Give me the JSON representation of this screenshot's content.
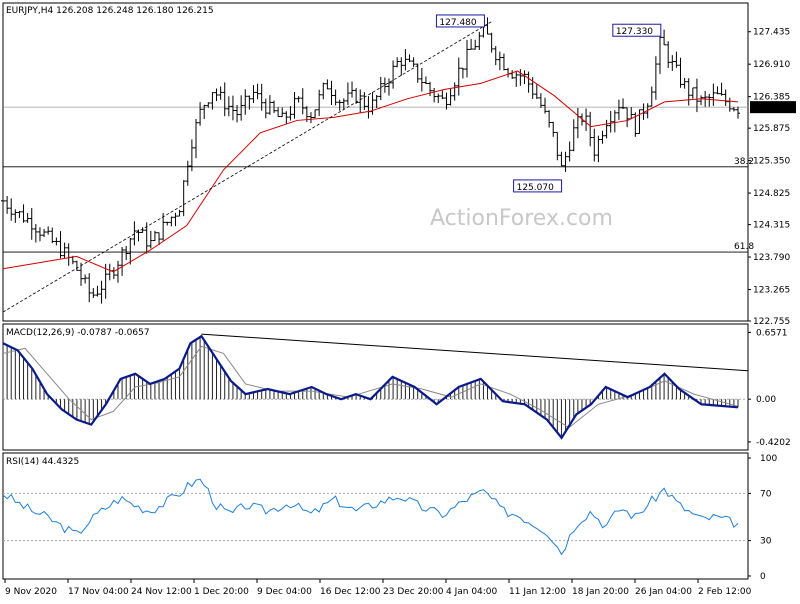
{
  "chart_data": [
    {
      "type": "candlestick",
      "header": "EURJPY,H4  126.208 126.248 126.180 126.215",
      "watermark": "ActionForex.com",
      "last_price": "126.215",
      "ylim": [
        122.755,
        127.9
      ],
      "y_ticks": [
        "127.435",
        "126.910",
        "126.385",
        "125.875",
        "125.350",
        "124.825",
        "124.315",
        "123.790",
        "123.265",
        "122.755"
      ],
      "x_ticks": [
        "9 Nov 2020",
        "17 Nov 04:00",
        "24 Nov 12:00",
        "1 Dec 20:00",
        "9 Dec 04:00",
        "16 Dec 12:00",
        "23 Dec 20:00",
        "4 Jan 04:00",
        "11 Jan 12:00",
        "18 Jan 20:00",
        "26 Jan 04:00",
        "2 Feb 12:00"
      ],
      "annotations": [
        {
          "text": "127.480",
          "x": 0.655,
          "y": 127.48
        },
        {
          "text": "127.330",
          "x": 0.895,
          "y": 127.33
        },
        {
          "text": "125.070",
          "x": 0.76,
          "y": 125.07
        }
      ],
      "fib_levels": [
        {
          "label": "38.2",
          "y": 125.25
        },
        {
          "label": "61.8",
          "y": 123.87
        }
      ],
      "close_series": [
        {
          "t": 0.0,
          "v": 124.7
        },
        {
          "t": 0.02,
          "v": 124.5
        },
        {
          "t": 0.04,
          "v": 124.35
        },
        {
          "t": 0.06,
          "v": 124.1
        },
        {
          "t": 0.08,
          "v": 123.9
        },
        {
          "t": 0.1,
          "v": 123.6
        },
        {
          "t": 0.12,
          "v": 123.15
        },
        {
          "t": 0.14,
          "v": 123.4
        },
        {
          "t": 0.16,
          "v": 123.8
        },
        {
          "t": 0.18,
          "v": 124.25
        },
        {
          "t": 0.2,
          "v": 124.0
        },
        {
          "t": 0.22,
          "v": 124.3
        },
        {
          "t": 0.24,
          "v": 124.6
        },
        {
          "t": 0.255,
          "v": 125.6
        },
        {
          "t": 0.27,
          "v": 126.2
        },
        {
          "t": 0.285,
          "v": 126.5
        },
        {
          "t": 0.3,
          "v": 126.3
        },
        {
          "t": 0.32,
          "v": 126.1
        },
        {
          "t": 0.34,
          "v": 126.45
        },
        {
          "t": 0.36,
          "v": 126.2
        },
        {
          "t": 0.38,
          "v": 126.0
        },
        {
          "t": 0.4,
          "v": 126.3
        },
        {
          "t": 0.42,
          "v": 126.1
        },
        {
          "t": 0.44,
          "v": 126.6
        },
        {
          "t": 0.46,
          "v": 126.3
        },
        {
          "t": 0.48,
          "v": 126.4
        },
        {
          "t": 0.5,
          "v": 126.2
        },
        {
          "t": 0.52,
          "v": 126.6
        },
        {
          "t": 0.54,
          "v": 127.0
        },
        {
          "t": 0.56,
          "v": 126.8
        },
        {
          "t": 0.58,
          "v": 126.5
        },
        {
          "t": 0.6,
          "v": 126.3
        },
        {
          "t": 0.62,
          "v": 126.8
        },
        {
          "t": 0.64,
          "v": 127.2
        },
        {
          "t": 0.655,
          "v": 127.45
        },
        {
          "t": 0.67,
          "v": 127.1
        },
        {
          "t": 0.69,
          "v": 126.8
        },
        {
          "t": 0.71,
          "v": 126.7
        },
        {
          "t": 0.73,
          "v": 126.3
        },
        {
          "t": 0.75,
          "v": 125.7
        },
        {
          "t": 0.76,
          "v": 125.2
        },
        {
          "t": 0.775,
          "v": 125.8
        },
        {
          "t": 0.79,
          "v": 126.1
        },
        {
          "t": 0.805,
          "v": 125.5
        },
        {
          "t": 0.82,
          "v": 126.0
        },
        {
          "t": 0.84,
          "v": 126.3
        },
        {
          "t": 0.86,
          "v": 125.9
        },
        {
          "t": 0.88,
          "v": 126.4
        },
        {
          "t": 0.895,
          "v": 127.3
        },
        {
          "t": 0.91,
          "v": 126.9
        },
        {
          "t": 0.93,
          "v": 126.5
        },
        {
          "t": 0.95,
          "v": 126.3
        },
        {
          "t": 0.97,
          "v": 126.4
        },
        {
          "t": 1.0,
          "v": 126.2
        }
      ],
      "ma_series": [
        {
          "t": 0.0,
          "v": 123.6
        },
        {
          "t": 0.05,
          "v": 123.7
        },
        {
          "t": 0.1,
          "v": 123.8
        },
        {
          "t": 0.15,
          "v": 123.55
        },
        {
          "t": 0.2,
          "v": 123.9
        },
        {
          "t": 0.25,
          "v": 124.3
        },
        {
          "t": 0.3,
          "v": 125.2
        },
        {
          "t": 0.35,
          "v": 125.8
        },
        {
          "t": 0.4,
          "v": 126.0
        },
        {
          "t": 0.45,
          "v": 126.05
        },
        {
          "t": 0.5,
          "v": 126.15
        },
        {
          "t": 0.55,
          "v": 126.35
        },
        {
          "t": 0.6,
          "v": 126.5
        },
        {
          "t": 0.65,
          "v": 126.6
        },
        {
          "t": 0.7,
          "v": 126.8
        },
        {
          "t": 0.75,
          "v": 126.4
        },
        {
          "t": 0.8,
          "v": 125.9
        },
        {
          "t": 0.85,
          "v": 126.0
        },
        {
          "t": 0.9,
          "v": 126.3
        },
        {
          "t": 0.95,
          "v": 126.35
        },
        {
          "t": 1.0,
          "v": 126.3
        }
      ]
    },
    {
      "type": "line",
      "header": "MACD(12,26,9) -0.0787 -0.0657",
      "ylim": [
        -0.48,
        0.72
      ],
      "y_ticks": [
        "0.6571",
        "0.00",
        "-0.4202"
      ],
      "macd": [
        {
          "t": 0.0,
          "v": 0.55
        },
        {
          "t": 0.02,
          "v": 0.48
        },
        {
          "t": 0.04,
          "v": 0.3
        },
        {
          "t": 0.06,
          "v": 0.05
        },
        {
          "t": 0.08,
          "v": -0.1
        },
        {
          "t": 0.1,
          "v": -0.2
        },
        {
          "t": 0.12,
          "v": -0.25
        },
        {
          "t": 0.14,
          "v": -0.05
        },
        {
          "t": 0.16,
          "v": 0.2
        },
        {
          "t": 0.18,
          "v": 0.25
        },
        {
          "t": 0.2,
          "v": 0.15
        },
        {
          "t": 0.22,
          "v": 0.2
        },
        {
          "t": 0.24,
          "v": 0.3
        },
        {
          "t": 0.255,
          "v": 0.55
        },
        {
          "t": 0.27,
          "v": 0.62
        },
        {
          "t": 0.29,
          "v": 0.4
        },
        {
          "t": 0.31,
          "v": 0.18
        },
        {
          "t": 0.33,
          "v": 0.05
        },
        {
          "t": 0.36,
          "v": 0.1
        },
        {
          "t": 0.39,
          "v": 0.05
        },
        {
          "t": 0.42,
          "v": 0.12
        },
        {
          "t": 0.44,
          "v": 0.05
        },
        {
          "t": 0.46,
          "v": 0.0
        },
        {
          "t": 0.48,
          "v": 0.05
        },
        {
          "t": 0.5,
          "v": 0.0
        },
        {
          "t": 0.53,
          "v": 0.22
        },
        {
          "t": 0.56,
          "v": 0.12
        },
        {
          "t": 0.59,
          "v": -0.05
        },
        {
          "t": 0.62,
          "v": 0.12
        },
        {
          "t": 0.65,
          "v": 0.2
        },
        {
          "t": 0.68,
          "v": -0.02
        },
        {
          "t": 0.71,
          "v": -0.05
        },
        {
          "t": 0.74,
          "v": -0.2
        },
        {
          "t": 0.76,
          "v": -0.38
        },
        {
          "t": 0.78,
          "v": -0.15
        },
        {
          "t": 0.8,
          "v": -0.05
        },
        {
          "t": 0.82,
          "v": 0.12
        },
        {
          "t": 0.85,
          "v": 0.02
        },
        {
          "t": 0.88,
          "v": 0.12
        },
        {
          "t": 0.9,
          "v": 0.25
        },
        {
          "t": 0.92,
          "v": 0.1
        },
        {
          "t": 0.95,
          "v": -0.05
        },
        {
          "t": 1.0,
          "v": -0.08
        }
      ],
      "signal": [
        {
          "t": 0.0,
          "v": 0.45
        },
        {
          "t": 0.03,
          "v": 0.5
        },
        {
          "t": 0.06,
          "v": 0.25
        },
        {
          "t": 0.09,
          "v": 0.0
        },
        {
          "t": 0.12,
          "v": -0.2
        },
        {
          "t": 0.15,
          "v": -0.12
        },
        {
          "t": 0.18,
          "v": 0.12
        },
        {
          "t": 0.21,
          "v": 0.16
        },
        {
          "t": 0.24,
          "v": 0.22
        },
        {
          "t": 0.27,
          "v": 0.52
        },
        {
          "t": 0.3,
          "v": 0.45
        },
        {
          "t": 0.33,
          "v": 0.15
        },
        {
          "t": 0.37,
          "v": 0.08
        },
        {
          "t": 0.42,
          "v": 0.08
        },
        {
          "t": 0.47,
          "v": 0.02
        },
        {
          "t": 0.53,
          "v": 0.15
        },
        {
          "t": 0.57,
          "v": 0.1
        },
        {
          "t": 0.61,
          "v": 0.02
        },
        {
          "t": 0.65,
          "v": 0.15
        },
        {
          "t": 0.69,
          "v": 0.05
        },
        {
          "t": 0.73,
          "v": -0.1
        },
        {
          "t": 0.77,
          "v": -0.28
        },
        {
          "t": 0.81,
          "v": -0.05
        },
        {
          "t": 0.86,
          "v": 0.05
        },
        {
          "t": 0.9,
          "v": 0.18
        },
        {
          "t": 0.94,
          "v": 0.05
        },
        {
          "t": 1.0,
          "v": -0.07
        }
      ],
      "trendline": [
        {
          "t": 0.27,
          "v": 0.64
        },
        {
          "t": 1.0,
          "v": 0.28
        }
      ]
    },
    {
      "type": "line",
      "header": "RSI(14) 44.4325",
      "ylim": [
        0,
        100
      ],
      "y_ticks": [
        "100",
        "70",
        "30",
        "0"
      ],
      "levels": [
        70,
        30
      ],
      "rsi": [
        {
          "t": 0.0,
          "v": 70
        },
        {
          "t": 0.02,
          "v": 62
        },
        {
          "t": 0.04,
          "v": 55
        },
        {
          "t": 0.06,
          "v": 50
        },
        {
          "t": 0.08,
          "v": 42
        },
        {
          "t": 0.1,
          "v": 35
        },
        {
          "t": 0.12,
          "v": 48
        },
        {
          "t": 0.14,
          "v": 58
        },
        {
          "t": 0.16,
          "v": 66
        },
        {
          "t": 0.18,
          "v": 60
        },
        {
          "t": 0.2,
          "v": 55
        },
        {
          "t": 0.22,
          "v": 62
        },
        {
          "t": 0.24,
          "v": 70
        },
        {
          "t": 0.255,
          "v": 78
        },
        {
          "t": 0.27,
          "v": 82
        },
        {
          "t": 0.29,
          "v": 60
        },
        {
          "t": 0.31,
          "v": 52
        },
        {
          "t": 0.33,
          "v": 60
        },
        {
          "t": 0.36,
          "v": 55
        },
        {
          "t": 0.39,
          "v": 62
        },
        {
          "t": 0.42,
          "v": 52
        },
        {
          "t": 0.45,
          "v": 65
        },
        {
          "t": 0.48,
          "v": 55
        },
        {
          "t": 0.51,
          "v": 62
        },
        {
          "t": 0.54,
          "v": 68
        },
        {
          "t": 0.57,
          "v": 58
        },
        {
          "t": 0.6,
          "v": 52
        },
        {
          "t": 0.63,
          "v": 65
        },
        {
          "t": 0.655,
          "v": 72
        },
        {
          "t": 0.68,
          "v": 55
        },
        {
          "t": 0.7,
          "v": 52
        },
        {
          "t": 0.72,
          "v": 45
        },
        {
          "t": 0.74,
          "v": 38
        },
        {
          "t": 0.76,
          "v": 20
        },
        {
          "t": 0.78,
          "v": 45
        },
        {
          "t": 0.8,
          "v": 55
        },
        {
          "t": 0.82,
          "v": 42
        },
        {
          "t": 0.84,
          "v": 58
        },
        {
          "t": 0.86,
          "v": 50
        },
        {
          "t": 0.88,
          "v": 62
        },
        {
          "t": 0.9,
          "v": 74
        },
        {
          "t": 0.92,
          "v": 60
        },
        {
          "t": 0.95,
          "v": 48
        },
        {
          "t": 0.97,
          "v": 50
        },
        {
          "t": 1.0,
          "v": 44
        }
      ]
    }
  ],
  "colors": {
    "candles": "#000000",
    "ma": "#d40000",
    "macd": "#0a1a8a",
    "signal": "#888888",
    "rsi": "#1f7fd8",
    "grid": "#aaaaaa"
  }
}
